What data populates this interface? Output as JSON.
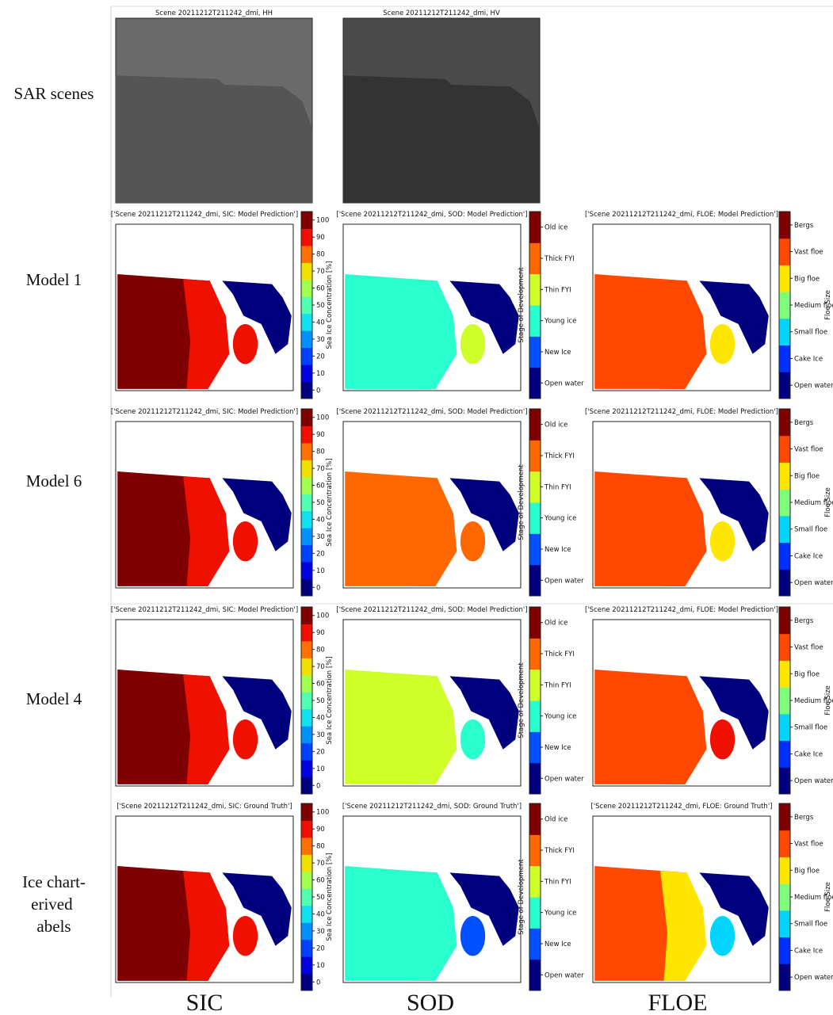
{
  "row_labels": [
    "SAR scenes",
    "Model 1",
    "Model 6",
    "Model 4",
    "Ice chart-derived labels"
  ],
  "column_labels": [
    "SIC",
    "SOD",
    "FLOE"
  ],
  "sar_titles": [
    "Scene 20211212T211242_dmi, HH",
    "Scene 20211212T211242_dmi, HV"
  ],
  "panel_titles": [
    [
      "['Scene 20211212T211242_dmi, SIC: Model Prediction']",
      "['Scene 20211212T211242_dmi, SOD: Model Prediction']",
      "['Scene 20211212T211242_dmi, FLOE: Model Prediction']"
    ],
    [
      "['Scene 20211212T211242_dmi, SIC: Model Prediction']",
      "['Scene 20211212T211242_dmi, SOD: Model Prediction']",
      "['Scene 20211212T211242_dmi, FLOE: Model Prediction']"
    ],
    [
      "['Scene 20211212T211242_dmi, SIC: Model Prediction']",
      "['Scene 20211212T211242_dmi, SOD: Model Prediction']",
      "['Scene 20211212T211242_dmi, FLOE: Model Prediction']"
    ],
    [
      "['Scene 20211212T211242_dmi, SIC: Ground Truth']",
      "['Scene 20211212T211242_dmi, SOD: Ground Truth']",
      "['Scene 20211212T211242_dmi, FLOE: Ground Truth']"
    ]
  ],
  "colorbars": [
    {
      "label": "Sea Ice Concentration [%]",
      "ticks": [
        0,
        10,
        20,
        30,
        40,
        50,
        60,
        70,
        80,
        90,
        100
      ]
    },
    {
      "label": "Stage of Development",
      "ticks": [
        "Open water",
        "New Ice",
        "Young ice",
        "Thin FYI",
        "Thick FYI",
        "Old ice"
      ]
    },
    {
      "label": "Floe Size",
      "ticks": [
        "Open water",
        "Cake Ice",
        "Small floe",
        "Medium floe",
        "Big floe",
        "Vast floe",
        "Bergs"
      ]
    }
  ]
}
